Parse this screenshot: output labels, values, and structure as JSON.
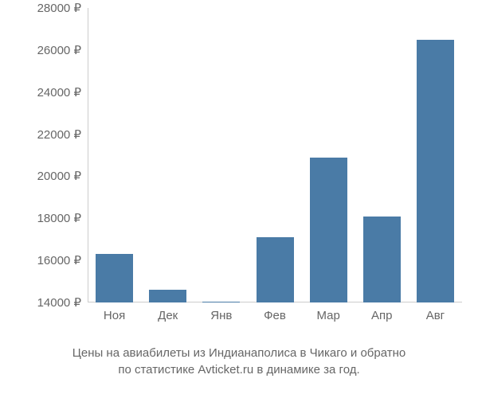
{
  "chart": {
    "type": "bar",
    "categories": [
      "Ноя",
      "Дек",
      "Янв",
      "Фев",
      "Мар",
      "Апр",
      "Авг"
    ],
    "values": [
      16300,
      14600,
      14000,
      17100,
      20900,
      18100,
      26500
    ],
    "bar_color": "#4a7ba6",
    "background_color": "#ffffff",
    "axis_text_color": "#666666",
    "axis_line_color": "#cccccc",
    "y_min": 14000,
    "y_max": 28000,
    "y_ticks": [
      14000,
      16000,
      18000,
      20000,
      22000,
      24000,
      26000,
      28000
    ],
    "y_tick_labels": [
      "14000 ₽",
      "16000 ₽",
      "18000 ₽",
      "20000 ₽",
      "22000 ₽",
      "24000 ₽",
      "26000 ₽",
      "28000 ₽"
    ],
    "bar_width_ratio": 0.7,
    "label_fontsize": 15,
    "caption_fontsize": 15
  },
  "caption": {
    "line1": "Цены на авиабилеты из Индианаполиса в Чикаго и обратно",
    "line2": "по статистике Avticket.ru в динамике за год."
  }
}
